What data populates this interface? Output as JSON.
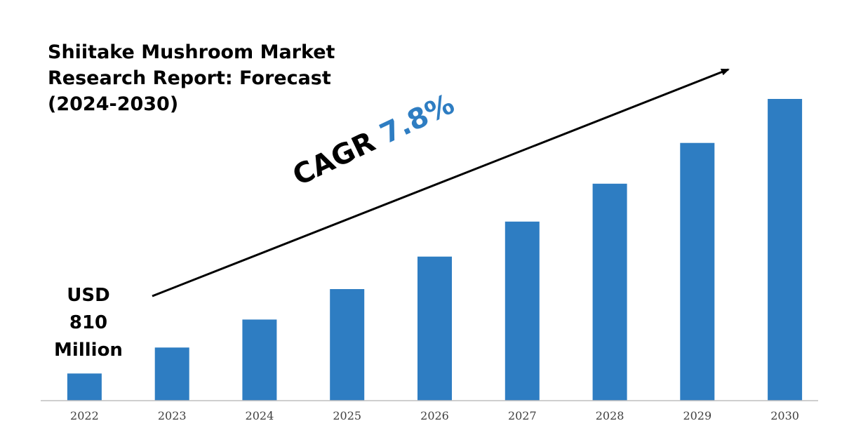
{
  "title": {
    "lines": [
      "Shiitake Mushroom Market",
      "Research Report: Forecast",
      "(2024-2030)"
    ]
  },
  "annotations": {
    "start_value": [
      "USD",
      "810",
      "Million"
    ],
    "cagr_label": "CAGR",
    "cagr_value": "7.8%"
  },
  "colors": {
    "bar": "#2e7dc2",
    "axis": "#bfbfbf",
    "text": "#000000",
    "arrow": "#000000"
  },
  "chart_data": {
    "type": "bar",
    "title": "Shiitake Mushroom Market Research Report: Forecast (2024-2030)",
    "categories": [
      "2022",
      "2023",
      "2024",
      "2025",
      "2026",
      "2027",
      "2028",
      "2029",
      "2030"
    ],
    "values": [
      810,
      873,
      941,
      1015,
      1094,
      1179,
      1271,
      1370,
      1477
    ],
    "grid": false,
    "legend": "none",
    "ylim": [
      744,
      1540
    ]
  }
}
